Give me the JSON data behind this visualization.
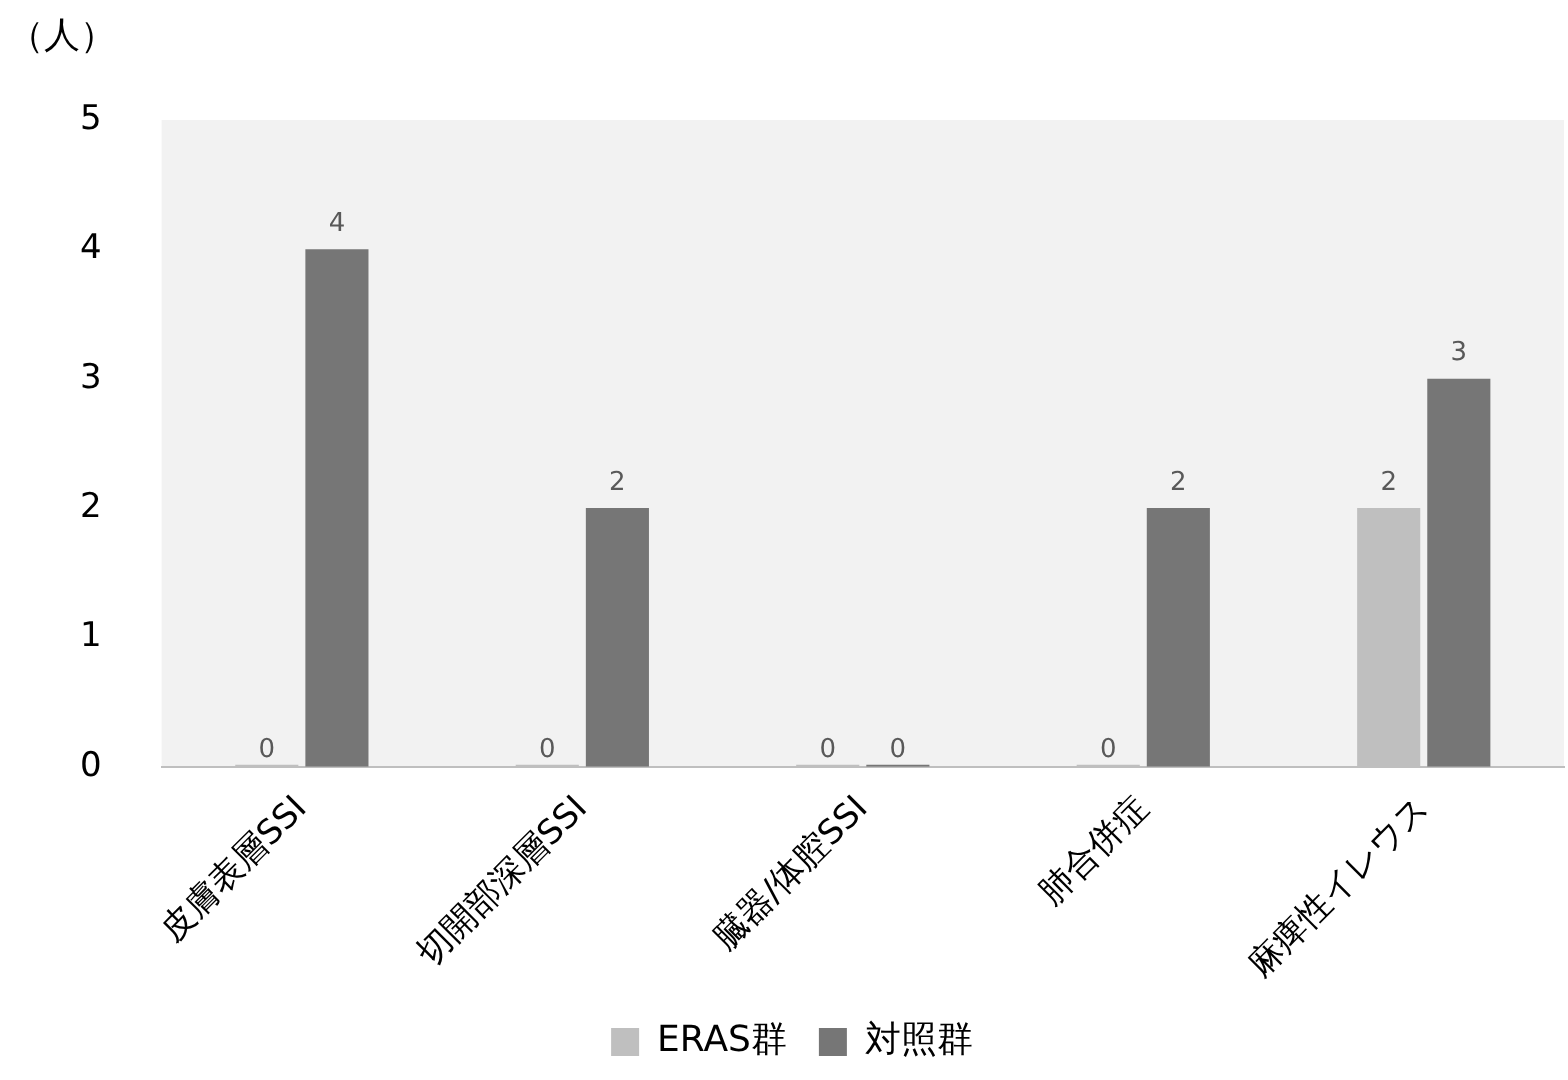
{
  "chart_data": {
    "type": "bar",
    "ylabel": "（人）",
    "categories": [
      "皮膚表層SSI",
      "切開部深層SSI",
      "臓器/体腔SSI",
      "肺合併症",
      "麻痺性イレウス"
    ],
    "series": [
      {
        "name": "ERAS群",
        "color": "#bfbfbf",
        "values": [
          0,
          0,
          0,
          0,
          2
        ]
      },
      {
        "name": "対照群",
        "color": "#767676",
        "values": [
          4,
          2,
          0,
          2,
          3
        ]
      }
    ],
    "ylim": [
      0,
      5
    ],
    "yticks": [
      0,
      1,
      2,
      3,
      4,
      5
    ],
    "grid": false,
    "legend": "bottom",
    "data_labels": true
  }
}
